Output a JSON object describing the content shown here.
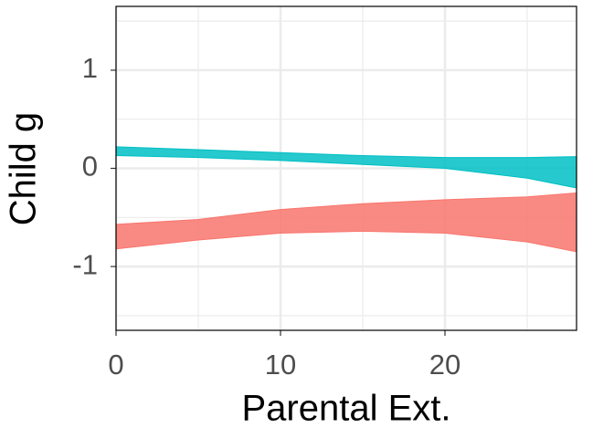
{
  "chart_data": {
    "type": "band",
    "xlabel": "Parental Ext.",
    "ylabel": "Child g",
    "x": [
      0,
      5,
      10,
      15,
      20,
      25,
      28
    ],
    "series": [
      {
        "color": "#00BFC4",
        "upper": [
          0.22,
          0.19,
          0.16,
          0.13,
          0.11,
          0.11,
          0.12
        ],
        "lower": [
          0.13,
          0.11,
          0.08,
          0.04,
          0.0,
          -0.1,
          -0.2
        ]
      },
      {
        "color": "#F8766D",
        "upper": [
          -0.57,
          -0.52,
          -0.42,
          -0.36,
          -0.32,
          -0.29,
          -0.25
        ],
        "lower": [
          -0.82,
          -0.73,
          -0.66,
          -0.64,
          -0.66,
          -0.75,
          -0.85
        ]
      }
    ],
    "xlim": [
      0,
      28
    ],
    "xticks": [
      0,
      10,
      20
    ],
    "xminor": [
      5,
      15,
      25
    ],
    "ylim": [
      -1.65,
      1.65
    ],
    "yticks": [
      -1,
      0,
      1
    ],
    "yminor": [
      -1.5,
      -0.5,
      0.5,
      1.5
    ],
    "grid": true
  }
}
